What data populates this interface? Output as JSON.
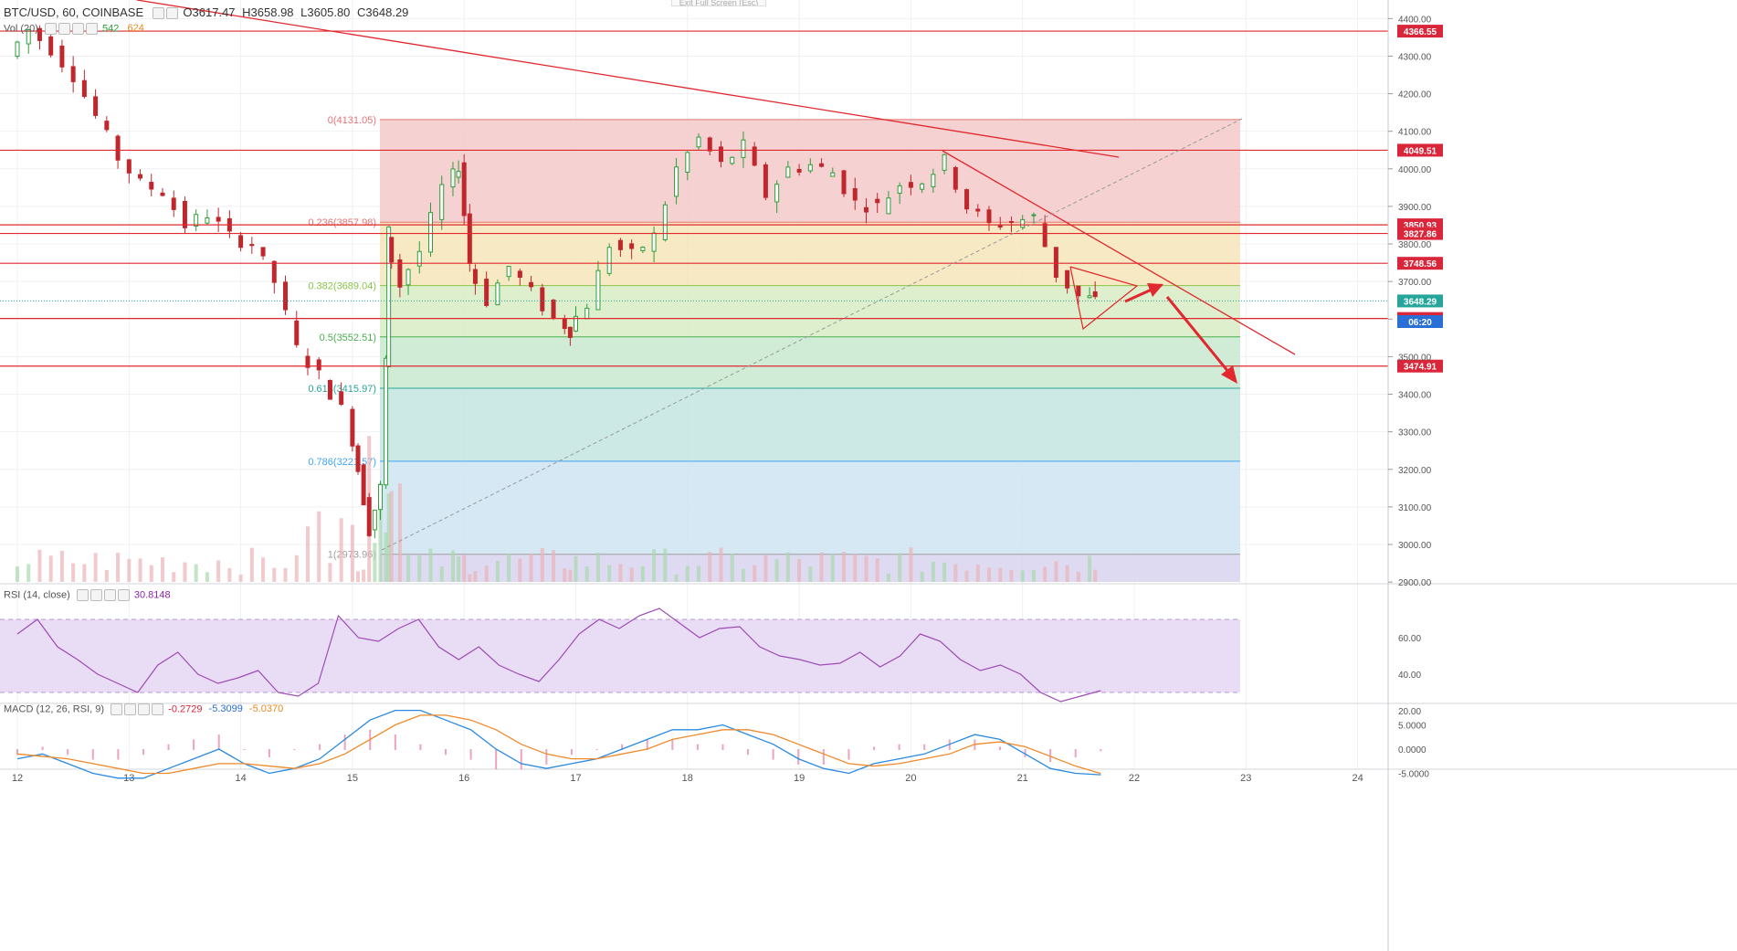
{
  "header": {
    "symbol": "BTC/USD, 60, COINBASE",
    "o_label": "O",
    "o": "3617.47",
    "h_label": "H",
    "h": "3658.98",
    "l_label": "L",
    "l": "3605.80",
    "c_label": "C",
    "c": "3648.29",
    "fullscreen_hint": "Exit Full Screen (Esc)"
  },
  "volume_legend": {
    "label": "Vol (20)",
    "v1": "542",
    "v2": "624"
  },
  "rsi_legend": {
    "label": "RSI (14, close)",
    "value": "30.8148"
  },
  "macd_legend": {
    "label": "MACD (12, 26, RSI, 9)",
    "v1": "-0.2729",
    "v2": "-5.3099",
    "v3": "-5.0370"
  },
  "colors": {
    "up": "#2e9e3a",
    "down": "#c0272d",
    "line": "#e0282e",
    "rsi": "#9c4bb5",
    "macd": "#2a8ae0",
    "signal": "#f08a2c"
  },
  "chart_data": {
    "type": "candlestick",
    "symbol": "BTC/USD",
    "interval": "60",
    "exchange": "COINBASE",
    "x_ticks": [
      "12",
      "13",
      "14",
      "15",
      "16",
      "17",
      "18",
      "19",
      "20",
      "21",
      "22",
      "23",
      "24"
    ],
    "y_range": [
      2900,
      4400
    ],
    "y_ticks": [
      2900,
      3000,
      3100,
      3200,
      3300,
      3400,
      3500,
      3600,
      3700,
      3800,
      3900,
      4000,
      4100,
      4200,
      4300,
      4400
    ],
    "y_tick_labels": [
      "2900.00",
      "3000.00",
      "3100.00",
      "3200.00",
      "3300.00",
      "3400.00",
      "3500.00",
      "3600.00",
      "3700.00",
      "3800.00",
      "3900.00",
      "4000.00",
      "4100.00",
      "4200.00",
      "4300.00",
      "4400.00"
    ],
    "price_path_days": [
      [
        12.0,
        4300
      ],
      [
        12.2,
        4370
      ],
      [
        12.4,
        4320
      ],
      [
        12.6,
        4250
      ],
      [
        12.8,
        4140
      ],
      [
        13.0,
        4030
      ],
      [
        13.2,
        3960
      ],
      [
        13.4,
        3940
      ],
      [
        13.6,
        3850
      ],
      [
        13.8,
        3880
      ],
      [
        14.0,
        3820
      ],
      [
        14.2,
        3800
      ],
      [
        14.4,
        3700
      ],
      [
        14.6,
        3520
      ],
      [
        14.8,
        3450
      ],
      [
        15.0,
        3360
      ],
      [
        15.1,
        3200
      ],
      [
        15.2,
        3040
      ],
      [
        15.3,
        3150
      ],
      [
        15.35,
        3830
      ],
      [
        15.5,
        3690
      ],
      [
        15.7,
        3780
      ],
      [
        15.9,
        3950
      ],
      [
        16.0,
        4010
      ],
      [
        16.1,
        3750
      ],
      [
        16.3,
        3650
      ],
      [
        16.5,
        3740
      ],
      [
        16.7,
        3670
      ],
      [
        16.9,
        3600
      ],
      [
        17.0,
        3570
      ],
      [
        17.2,
        3640
      ],
      [
        17.4,
        3800
      ],
      [
        17.6,
        3770
      ],
      [
        17.8,
        3820
      ],
      [
        18.0,
        4000
      ],
      [
        18.2,
        4080
      ],
      [
        18.4,
        4010
      ],
      [
        18.6,
        4060
      ],
      [
        18.8,
        3930
      ],
      [
        19.0,
        4000
      ],
      [
        19.2,
        4010
      ],
      [
        19.4,
        3990
      ],
      [
        19.6,
        3910
      ],
      [
        19.8,
        3900
      ],
      [
        20.0,
        3960
      ],
      [
        20.2,
        3970
      ],
      [
        20.4,
        4020
      ],
      [
        20.6,
        3900
      ],
      [
        20.8,
        3850
      ],
      [
        21.0,
        3860
      ],
      [
        21.2,
        3870
      ],
      [
        21.4,
        3720
      ],
      [
        21.6,
        3660
      ],
      [
        21.7,
        3648
      ]
    ],
    "horizontal_levels": [
      "4366.55",
      "4049.51",
      "3850.93",
      "3827.86",
      "3748.56",
      "3601.52",
      "3474.91"
    ],
    "fibonacci": [
      {
        "ratio": "0",
        "label": "0(4131.05)",
        "price": 4131.05,
        "color": "#e57373"
      },
      {
        "ratio": "0.236",
        "label": "0.236(3857.98)",
        "price": 3857.98,
        "color": "#e57373"
      },
      {
        "ratio": "0.382",
        "label": "0.382(3689.04)",
        "price": 3689.04,
        "color": "#8bc34a"
      },
      {
        "ratio": "0.5",
        "label": "0.5(3552.51)",
        "price": 3552.51,
        "color": "#4caf50"
      },
      {
        "ratio": "0.618",
        "label": "0.618(3415.97)",
        "price": 3415.97,
        "color": "#26a69a"
      },
      {
        "ratio": "0.786",
        "label": "0.786(3221.57)",
        "price": 3221.57,
        "color": "#42a5f5"
      },
      {
        "ratio": "1",
        "label": "1(2973.96)",
        "price": 2973.96,
        "color": "#9e9e9e"
      }
    ],
    "price_labels": [
      {
        "text": "3648.29",
        "price": 3648.29,
        "color": "#26a69a"
      },
      {
        "text": "06:20",
        "price": 3625,
        "color": "#2a6fd6"
      }
    ],
    "rsi": {
      "ticks": [
        "20.00",
        "40.00",
        "60.00"
      ],
      "values": [
        62,
        70,
        55,
        48,
        40,
        35,
        30,
        45,
        52,
        40,
        35,
        38,
        42,
        30,
        28,
        35,
        72,
        60,
        58,
        65,
        70,
        55,
        48,
        55,
        45,
        40,
        36,
        48,
        62,
        70,
        65,
        72,
        76,
        68,
        60,
        65,
        66,
        55,
        50,
        48,
        45,
        46,
        52,
        44,
        50,
        62,
        58,
        48,
        42,
        45,
        40,
        30,
        25,
        28,
        31
      ]
    },
    "macd": {
      "ticks": [
        "-5.0000",
        "0.0000",
        "5.0000"
      ],
      "macd_values": [
        -2,
        -1,
        -3,
        -5,
        -6,
        -6,
        -4,
        -2,
        0,
        -3,
        -5,
        -4,
        -2,
        2,
        6,
        8,
        8,
        6,
        4,
        0,
        -3,
        -4,
        -3,
        -2,
        0,
        2,
        4,
        4,
        5,
        3,
        1,
        -2,
        -4,
        -5,
        -3,
        -2,
        -1,
        1,
        3,
        2,
        -1,
        -4,
        -5,
        -5.3
      ],
      "signal_values": [
        -1,
        -1.5,
        -2,
        -3,
        -4,
        -5,
        -5,
        -4,
        -3,
        -3,
        -3.5,
        -4,
        -3,
        -1,
        2,
        5,
        7,
        7,
        6,
        4,
        1,
        -1,
        -2,
        -2,
        -1,
        0,
        2,
        3,
        4,
        4,
        3,
        1,
        -1,
        -3,
        -3.5,
        -3,
        -2,
        -1,
        1,
        1.5,
        0.5,
        -1.5,
        -3.5,
        -5.04
      ]
    }
  }
}
